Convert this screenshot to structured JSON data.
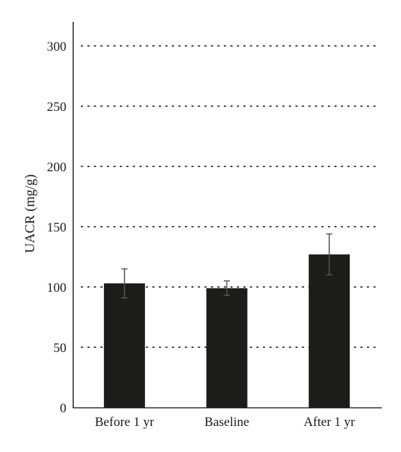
{
  "chart_data": {
    "type": "bar",
    "categories": [
      "Before 1 yr",
      "Baseline",
      "After 1 yr"
    ],
    "values": [
      103,
      99,
      127
    ],
    "error_low": [
      91,
      93,
      110
    ],
    "error_high": [
      115,
      105,
      144
    ],
    "title": "",
    "xlabel": "",
    "ylabel": "UACR (mg/g)",
    "ylim": [
      0,
      300
    ],
    "yticks": [
      0,
      50,
      100,
      150,
      200,
      250,
      300
    ],
    "grid": "horizontal dotted",
    "legend": "none",
    "colors": {
      "bar": "#1c1c18",
      "error_bar": "#555555",
      "axis": "#222222",
      "grid": "#333333"
    }
  }
}
